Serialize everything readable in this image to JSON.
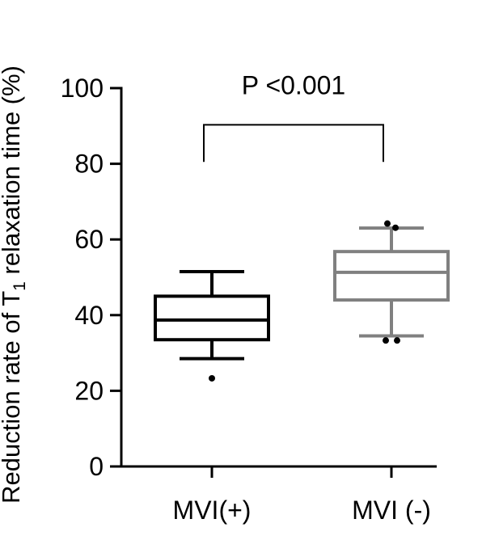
{
  "chart_data": {
    "type": "box",
    "title": "",
    "xlabel": "",
    "ylabel": "Reduction rate of T",
    "ylabel_subscript": "1",
    "ylabel_rest": " relaxation time (%)",
    "ylim": [
      0,
      100
    ],
    "yticks": [
      0,
      20,
      40,
      60,
      80,
      100
    ],
    "grid": false,
    "categories": [
      "MVI(+)",
      "MVI (-)"
    ],
    "series": [
      {
        "category": "MVI(+)",
        "color": "#000000",
        "whisker_low": 28.5,
        "q1": 33.5,
        "median": 38.7,
        "q3": 45,
        "whisker_high": 51.5,
        "outliers": [
          23.3
        ]
      },
      {
        "category": "MVI (-)",
        "color": "#808080",
        "whisker_low": 34.5,
        "q1": 44,
        "median": 51.3,
        "q3": 56.8,
        "whisker_high": 63,
        "outliers": [
          33.3,
          33.3,
          64.2,
          63.1
        ]
      }
    ],
    "annotations": [
      {
        "text": "P <0.001",
        "between": [
          "MVI(+)",
          "MVI (-)"
        ],
        "bracket_top": 90.3,
        "bracket_bottom": 80.5
      }
    ]
  }
}
